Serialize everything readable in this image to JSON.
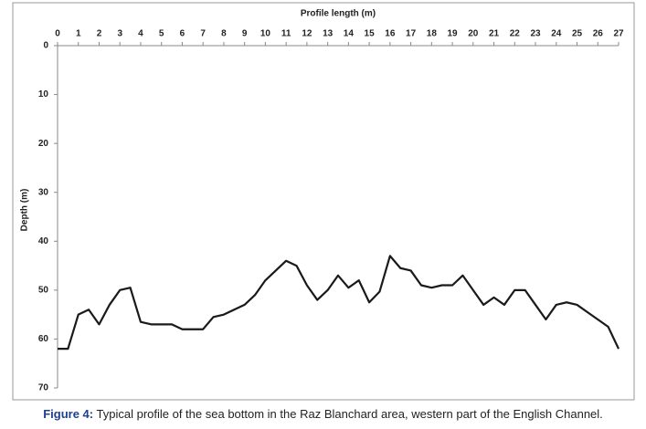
{
  "chart_data": {
    "type": "line",
    "x_label": "Profile length (m)",
    "y_label": "Depth (m)",
    "x": [
      0,
      0.5,
      1,
      1.5,
      2,
      2.5,
      3,
      3.5,
      4,
      4.5,
      5,
      5.5,
      6,
      6.5,
      7,
      7.5,
      8,
      8.5,
      9,
      9.5,
      10,
      10.5,
      11,
      11.5,
      12,
      12.5,
      13,
      13.5,
      14,
      14.5,
      15,
      15.5,
      16,
      16.5,
      17,
      17.5,
      18,
      18.5,
      19,
      19.5,
      20,
      20.5,
      21,
      21.5,
      22,
      22.5,
      23,
      23.5,
      24,
      24.5,
      25,
      25.5,
      26,
      26.5,
      27
    ],
    "series": [
      {
        "color": "#1a1a1a",
        "values": [
          62,
          62,
          55,
          54,
          57,
          53,
          50,
          49.5,
          56.5,
          57,
          57,
          57,
          58,
          58,
          58,
          55.5,
          55,
          54,
          53,
          51,
          48,
          46,
          44,
          45,
          49,
          52,
          50,
          47,
          49.5,
          48,
          52.5,
          50.3,
          43,
          45.5,
          46,
          49,
          49.5,
          49,
          49,
          47,
          50,
          53,
          51.5,
          53,
          50,
          50,
          53,
          56,
          53,
          52.5,
          53,
          54.5,
          56,
          57.5,
          62
        ]
      }
    ],
    "xlim": [
      0,
      27
    ],
    "xticks": [
      0,
      1,
      2,
      3,
      4,
      5,
      6,
      7,
      8,
      9,
      10,
      11,
      12,
      13,
      14,
      15,
      16,
      17,
      18,
      19,
      20,
      21,
      22,
      23,
      24,
      25,
      26,
      27
    ],
    "ylim": [
      0,
      70
    ],
    "yticks": [
      0,
      10,
      20,
      30,
      40,
      50,
      60,
      70
    ],
    "y_inverted": true,
    "x_axis_position": "top",
    "caption_label": "Figure 4:",
    "caption_text": "Typical profile of the sea bottom in the Raz Blanchard area, western part of the English Channel."
  }
}
